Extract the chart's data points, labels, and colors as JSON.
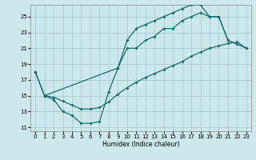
{
  "xlabel": "Humidex (Indice chaleur)",
  "bg_color": "#cce8ec",
  "grid_color": "#aaccd4",
  "line_color": "#1a6b6b",
  "xlim": [
    -0.5,
    23.5
  ],
  "ylim": [
    10.5,
    26.5
  ],
  "xticks": [
    0,
    1,
    2,
    3,
    4,
    5,
    6,
    7,
    8,
    9,
    10,
    11,
    12,
    13,
    14,
    15,
    16,
    17,
    18,
    19,
    20,
    21,
    22,
    23
  ],
  "yticks": [
    11,
    13,
    15,
    17,
    19,
    21,
    23,
    25
  ],
  "curve1_x": [
    0,
    1,
    2,
    3,
    4,
    5,
    6,
    7,
    8,
    9,
    10,
    11,
    12,
    13,
    14,
    15,
    16,
    17,
    18,
    19,
    20,
    21
  ],
  "curve1_y": [
    18,
    15,
    14.5,
    13,
    12.5,
    11.5,
    11.5,
    11.7,
    15.5,
    18.5,
    21,
    21,
    22,
    22.5,
    23.5,
    23.5,
    24.5,
    25,
    25.5,
    25,
    25,
    22
  ],
  "curve2_x": [
    0,
    1,
    9,
    10,
    11,
    12,
    13,
    14,
    15,
    16,
    17,
    18,
    19,
    20,
    21,
    22,
    23
  ],
  "curve2_y": [
    18,
    15,
    18.5,
    22,
    23.5,
    24,
    24.5,
    25,
    25.5,
    26,
    26.5,
    26.5,
    25,
    25,
    22,
    21.5,
    21
  ],
  "curve3_x": [
    1,
    2,
    3,
    4,
    5,
    6,
    7,
    8,
    9,
    10,
    11,
    12,
    13,
    14,
    15,
    16,
    17,
    18,
    19,
    20,
    21,
    22,
    23
  ],
  "curve3_y": [
    15,
    14.8,
    14.3,
    13.8,
    13.3,
    13.3,
    13.5,
    14.2,
    15.2,
    16,
    16.7,
    17.3,
    17.8,
    18.3,
    18.8,
    19.3,
    20,
    20.5,
    21,
    21.3,
    21.6,
    21.8,
    21
  ]
}
